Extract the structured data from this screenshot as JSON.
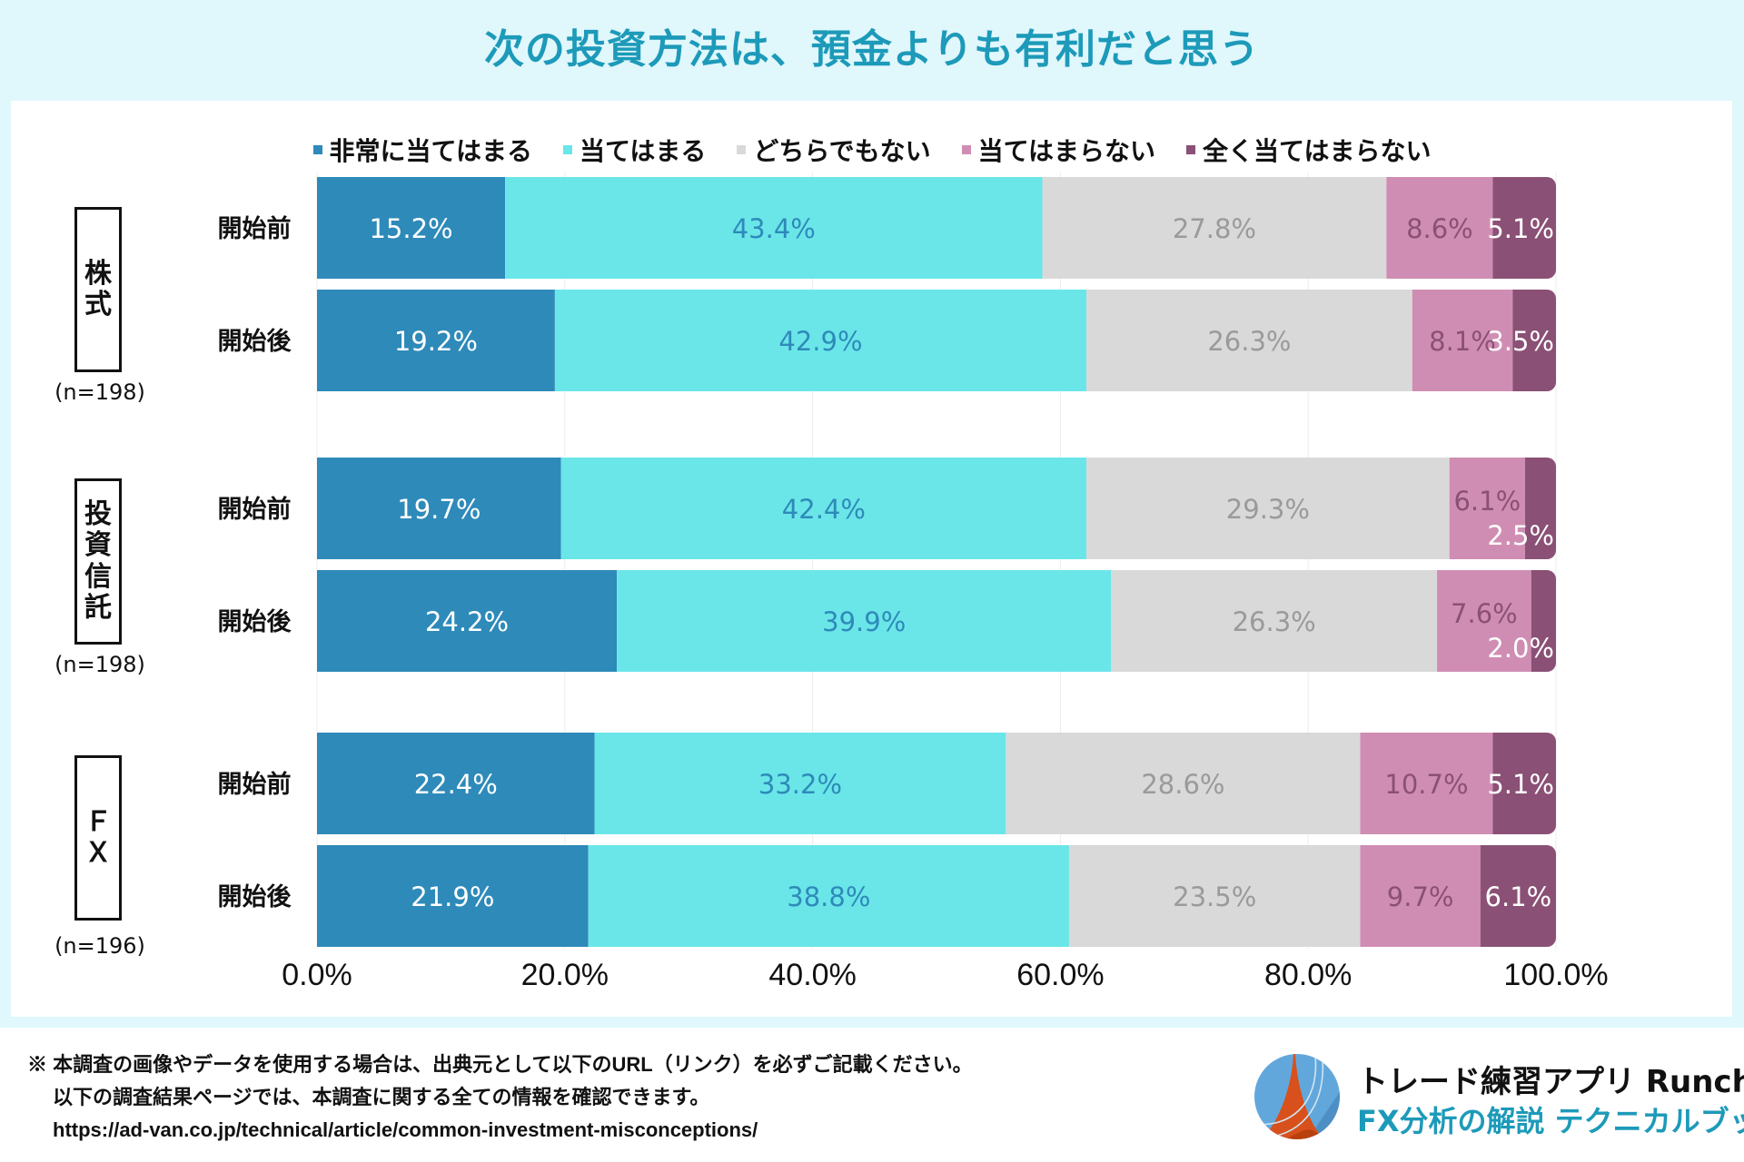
{
  "title": "次の投資方法は、預金よりも有利だと思う",
  "chart_data": {
    "type": "bar",
    "orientation": "horizontal-stacked-100",
    "title": "次の投資方法は、預金よりも有利だと思う",
    "legend_position": "top",
    "series": [
      {
        "name": "非常に当てはまる",
        "color": "#2e8ab9",
        "label_color": "#ffffff"
      },
      {
        "name": "当てはまる",
        "color": "#6ae6e9",
        "label_color": "#2e8ab9"
      },
      {
        "name": "どちらでもない",
        "color": "#d9d9d9",
        "label_color": "#9a9a9a"
      },
      {
        "name": "当てはまらない",
        "color": "#d08db3",
        "label_color": "#8a5075"
      },
      {
        "name": "全く当てはまらない",
        "color": "#8a5075",
        "label_color": "#ffffff"
      }
    ],
    "groups": [
      {
        "name": "株式",
        "n_label": "(n=198)",
        "rows": [
          {
            "label": "開始前",
            "values": [
              15.2,
              43.4,
              27.8,
              8.6,
              5.1
            ]
          },
          {
            "label": "開始後",
            "values": [
              19.2,
              42.9,
              26.3,
              8.1,
              3.5
            ]
          }
        ]
      },
      {
        "name": "投資信託",
        "n_label": "(n=198)",
        "rows": [
          {
            "label": "開始前",
            "values": [
              19.7,
              42.4,
              29.3,
              6.1,
              2.5
            ]
          },
          {
            "label": "開始後",
            "values": [
              24.2,
              39.9,
              26.3,
              7.6,
              2.0
            ]
          }
        ]
      },
      {
        "name": "ＦＸ",
        "n_label": "(n=196)",
        "rows": [
          {
            "label": "開始前",
            "values": [
              22.4,
              33.2,
              28.6,
              10.7,
              5.1
            ]
          },
          {
            "label": "開始後",
            "values": [
              21.9,
              38.8,
              23.5,
              9.7,
              6.1
            ]
          }
        ]
      }
    ],
    "xlim": [
      0,
      100
    ],
    "x_ticks": [
      "0.0%",
      "20.0%",
      "40.0%",
      "60.0%",
      "80.0%",
      "100.0%"
    ],
    "x_tick_values": [
      0,
      20,
      40,
      60,
      80,
      100
    ],
    "value_format": "{v}%",
    "grid": true
  },
  "footer": {
    "note_line1": "※ 本調査の画像やデータを使用する場合は、出典元として以下のURL（リンク）を必ずご記載ください。",
    "note_line2": "以下の調査結果ページでは、本調査に関する全ての情報を確認できます。",
    "url": "https://ad-van.co.jp/technical/article/common-investment-misconceptions/"
  },
  "brand": {
    "line1": "トレード練習アプリ  Runcha",
    "line2": "FX分析の解説  テクニカルブック",
    "logo_icon": "runcha-globe-logo"
  }
}
